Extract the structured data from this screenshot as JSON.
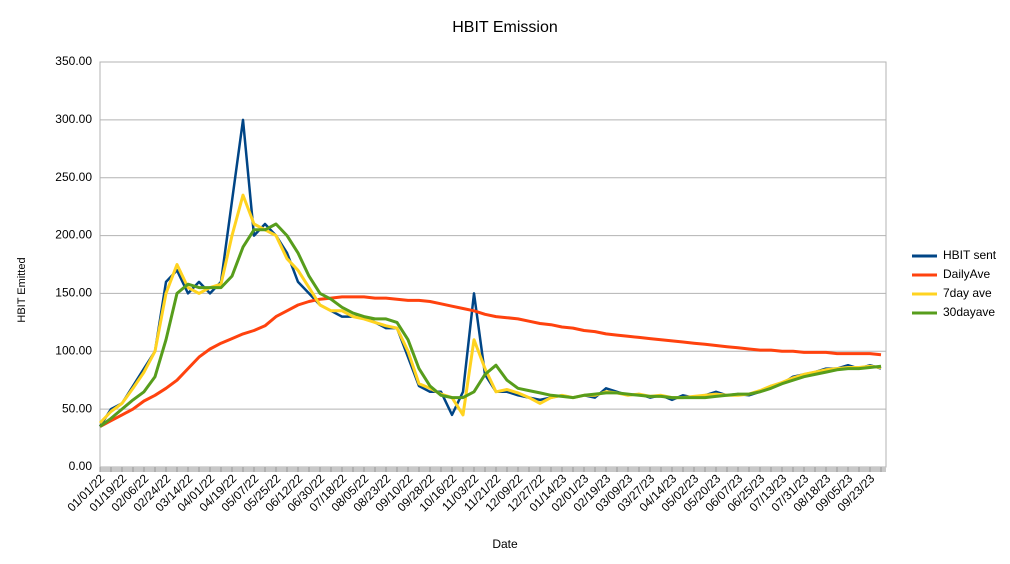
{
  "chart_data": {
    "type": "line",
    "title": "HBIT Emission",
    "x_label": "Date",
    "y_label": "HBIT Emitted",
    "categories": [
      "01/01/22",
      null,
      "01/19/22",
      null,
      "02/06/22",
      null,
      "02/24/22",
      null,
      "03/14/22",
      null,
      "04/01/22",
      null,
      "04/19/22",
      null,
      "05/07/22",
      null,
      "05/25/22",
      null,
      "06/12/22",
      null,
      "06/30/22",
      null,
      "07/18/22",
      null,
      "08/05/22",
      null,
      "08/23/22",
      null,
      "09/10/22",
      null,
      "09/28/22",
      null,
      "10/16/22",
      null,
      "11/03/22",
      null,
      "11/21/22",
      null,
      "12/09/22",
      null,
      "12/27/22",
      null,
      "01/14/23",
      null,
      "02/01/23",
      null,
      "02/19/23",
      null,
      "03/09/23",
      null,
      "03/27/23",
      null,
      "04/14/23",
      null,
      "05/02/23",
      null,
      "05/20/23",
      null,
      "06/07/23",
      null,
      "06/25/23",
      null,
      "07/13/23",
      null,
      "07/31/23",
      null,
      "08/18/23",
      null,
      "09/05/23",
      null,
      "09/23/23",
      null
    ],
    "series": [
      {
        "name": "HBIT sent",
        "color": "#004586",
        "values": [
          35,
          50,
          55,
          70,
          85,
          100,
          160,
          170,
          150,
          160,
          150,
          160,
          230,
          300,
          200,
          210,
          200,
          185,
          160,
          150,
          140,
          135,
          130,
          130,
          130,
          125,
          120,
          120,
          95,
          70,
          65,
          65,
          45,
          65,
          150,
          80,
          65,
          65,
          62,
          60,
          58,
          60,
          62,
          60,
          62,
          60,
          68,
          65,
          62,
          63,
          60,
          62,
          58,
          62,
          60,
          62,
          65,
          62,
          63,
          62,
          65,
          70,
          72,
          78,
          80,
          82,
          85,
          85,
          88,
          85,
          88,
          85
        ]
      },
      {
        "name": "DailyAve",
        "color": "#ff420e",
        "values": [
          35,
          40,
          45,
          50,
          57,
          62,
          68,
          75,
          85,
          95,
          102,
          107,
          111,
          115,
          118,
          122,
          130,
          135,
          140,
          143,
          145,
          146,
          147,
          147,
          147,
          146,
          146,
          145,
          144,
          144,
          143,
          141,
          139,
          137,
          135,
          132,
          130,
          129,
          128,
          126,
          124,
          123,
          121,
          120,
          118,
          117,
          115,
          114,
          113,
          112,
          111,
          110,
          109,
          108,
          107,
          106,
          105,
          104,
          103,
          102,
          101,
          101,
          100,
          100,
          99,
          99,
          99,
          98,
          98,
          98,
          98,
          97
        ]
      },
      {
        "name": "7day ave",
        "color": "#ffd320",
        "values": [
          38,
          48,
          55,
          68,
          82,
          100,
          150,
          175,
          155,
          150,
          155,
          158,
          200,
          235,
          210,
          205,
          200,
          180,
          170,
          155,
          140,
          135,
          135,
          130,
          128,
          125,
          122,
          120,
          100,
          72,
          68,
          63,
          60,
          45,
          110,
          85,
          65,
          67,
          64,
          60,
          55,
          60,
          62,
          60,
          62,
          62,
          65,
          64,
          62,
          63,
          61,
          62,
          60,
          60,
          61,
          62,
          63,
          62,
          62,
          63,
          66,
          70,
          73,
          77,
          80,
          82,
          84,
          85,
          86,
          86,
          87,
          86
        ]
      },
      {
        "name": "30dayave",
        "color": "#579d1c",
        "values": [
          35,
          42,
          50,
          58,
          65,
          78,
          110,
          150,
          158,
          155,
          155,
          155,
          165,
          190,
          205,
          205,
          210,
          200,
          185,
          165,
          150,
          145,
          138,
          133,
          130,
          128,
          128,
          125,
          110,
          85,
          70,
          62,
          60,
          60,
          65,
          80,
          88,
          75,
          68,
          66,
          64,
          62,
          61,
          60,
          62,
          63,
          64,
          64,
          63,
          62,
          61,
          61,
          60,
          60,
          60,
          60,
          61,
          62,
          63,
          63,
          65,
          68,
          72,
          75,
          78,
          80,
          82,
          84,
          85,
          85,
          86,
          87
        ]
      }
    ],
    "ylim": [
      0,
      350
    ],
    "yticks": [
      {
        "value": 0,
        "label": "0.00"
      },
      {
        "value": 50,
        "label": "50.00"
      },
      {
        "value": 100,
        "label": "100.00"
      },
      {
        "value": 150,
        "label": "150.00"
      },
      {
        "value": 200,
        "label": "200.00"
      },
      {
        "value": 250,
        "label": "250.00"
      },
      {
        "value": 300,
        "label": "300.00"
      },
      {
        "value": 350,
        "label": "350.00"
      }
    ],
    "grid": true,
    "legend": "right"
  }
}
